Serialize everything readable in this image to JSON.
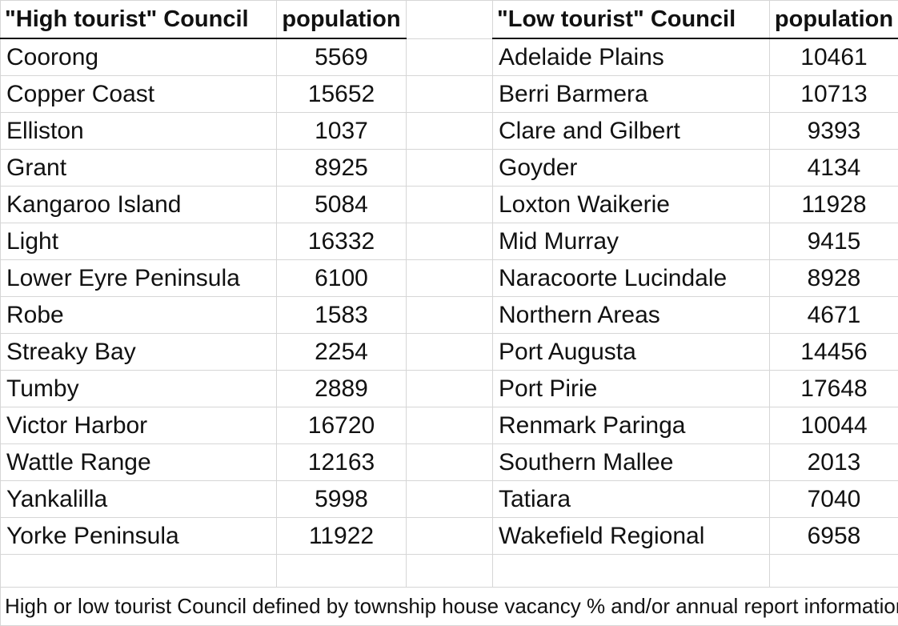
{
  "high": {
    "header_name": "\"High tourist\" Council",
    "header_pop": "population",
    "rows": [
      {
        "name": "Coorong",
        "pop": "5569"
      },
      {
        "name": "Copper Coast",
        "pop": "15652"
      },
      {
        "name": "Elliston",
        "pop": "1037"
      },
      {
        "name": "Grant",
        "pop": "8925"
      },
      {
        "name": "Kangaroo Island",
        "pop": "5084"
      },
      {
        "name": "Light",
        "pop": "16332"
      },
      {
        "name": "Lower Eyre Peninsula",
        "pop": "6100"
      },
      {
        "name": "Robe",
        "pop": "1583"
      },
      {
        "name": "Streaky Bay",
        "pop": "2254"
      },
      {
        "name": "Tumby",
        "pop": "2889"
      },
      {
        "name": "Victor Harbor",
        "pop": "16720"
      },
      {
        "name": "Wattle Range",
        "pop": "12163"
      },
      {
        "name": "Yankalilla",
        "pop": "5998"
      },
      {
        "name": "Yorke Peninsula",
        "pop": "11922"
      }
    ]
  },
  "low": {
    "header_name": "\"Low tourist\" Council",
    "header_pop": "population",
    "rows": [
      {
        "name": "Adelaide Plains",
        "pop": "10461"
      },
      {
        "name": "Berri Barmera",
        "pop": "10713"
      },
      {
        "name": "Clare and Gilbert",
        "pop": "9393"
      },
      {
        "name": "Goyder",
        "pop": "4134"
      },
      {
        "name": "Loxton Waikerie",
        "pop": "11928"
      },
      {
        "name": "Mid Murray",
        "pop": "9415"
      },
      {
        "name": "Naracoorte Lucindale",
        "pop": "8928"
      },
      {
        "name": "Northern Areas",
        "pop": "4671"
      },
      {
        "name": "Port Augusta",
        "pop": "14456"
      },
      {
        "name": "Port Pirie",
        "pop": "17648"
      },
      {
        "name": "Renmark Paringa",
        "pop": "10044"
      },
      {
        "name": "Southern Mallee",
        "pop": "2013"
      },
      {
        "name": "Tatiara",
        "pop": "7040"
      },
      {
        "name": "Wakefield Regional",
        "pop": "6958"
      }
    ]
  },
  "footnote": "High or low tourist Council defined by township house vacancy % and/or annual report information"
}
